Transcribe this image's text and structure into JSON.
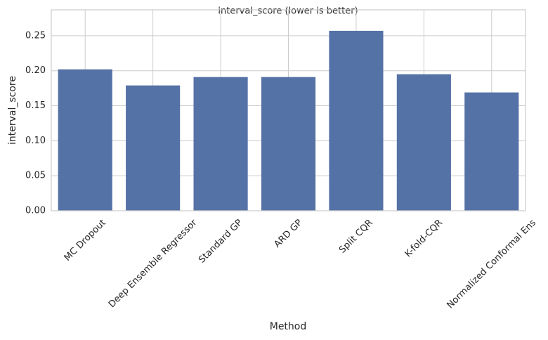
{
  "chart_data": {
    "type": "bar",
    "title": "interval_score (lower is better)",
    "x_label": "Method",
    "y_label": "interval_score",
    "categories": [
      "MC Dropout",
      "Deep Ensemble Regressor",
      "Standard GP",
      "ARD GP",
      "Split CQR",
      "K-fold-CQR",
      "Normalized Conformal Ens"
    ],
    "values": [
      0.202,
      0.179,
      0.191,
      0.191,
      0.257,
      0.195,
      0.169
    ],
    "color": "#5572a6",
    "ylim": [
      0,
      0.287
    ],
    "yticks": [
      {
        "value": 0,
        "label": "0.00"
      },
      {
        "value": 0.05,
        "label": "0.05"
      },
      {
        "value": 0.1,
        "label": "0.10"
      },
      {
        "value": 0.15,
        "label": "0.15"
      },
      {
        "value": 0.2,
        "label": "0.20"
      },
      {
        "value": 0.25,
        "label": "0.25"
      }
    ],
    "grid": true
  }
}
